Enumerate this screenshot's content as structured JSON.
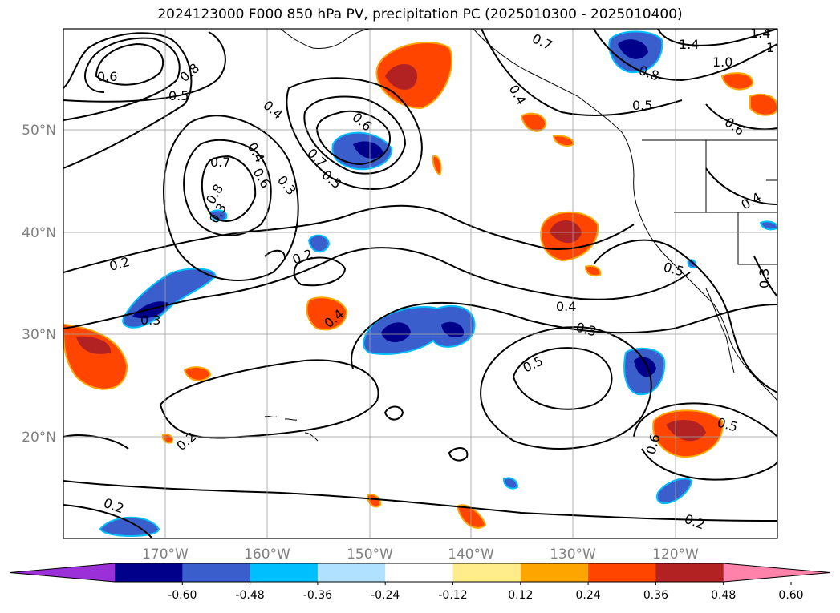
{
  "title": "2024123000 F000 850 hPa PV, precipitation PC (2025010300 - 2025010400)",
  "latitude_labels": [
    "50°N",
    "40°N",
    "30°N",
    "20°N"
  ],
  "longitude_labels": [
    "170°W",
    "160°W",
    "150°W",
    "140°W",
    "130°W",
    "120°W"
  ],
  "contour_labels": [
    "0.6",
    "0.8",
    "0.5",
    "0.4",
    "0.6",
    "0.7",
    "0.8",
    "0.4",
    "0.6",
    "0.7",
    "0.3",
    "0.5",
    "0.3",
    "0.2",
    "0.2",
    "0.3",
    "0.4",
    "0.7",
    "0.4",
    "0.5",
    "0.8",
    "1.4",
    "1.0",
    "1.4",
    "1",
    "0.6",
    "0.4",
    "0.5",
    "0.3",
    "0.4",
    "0.3",
    "0.5",
    "0.2",
    "0.5",
    "0.6",
    "0.2",
    "0.2"
  ],
  "colorbar": {
    "ticks": [
      "-0.60",
      "-0.48",
      "-0.36",
      "-0.24",
      "-0.12",
      "0.12",
      "0.24",
      "0.36",
      "0.48",
      "0.60"
    ],
    "colors": [
      "#9b30d9",
      "#00008b",
      "#3a5fcd",
      "#00bfff",
      "#b0e2ff",
      "#ffffff",
      "#ffec8b",
      "#ffa500",
      "#ff4500",
      "#b22222",
      "#ff82ab"
    ]
  },
  "colors": {
    "coast": "#000000",
    "grid": "#a0a0a0",
    "contour": "#000000"
  }
}
